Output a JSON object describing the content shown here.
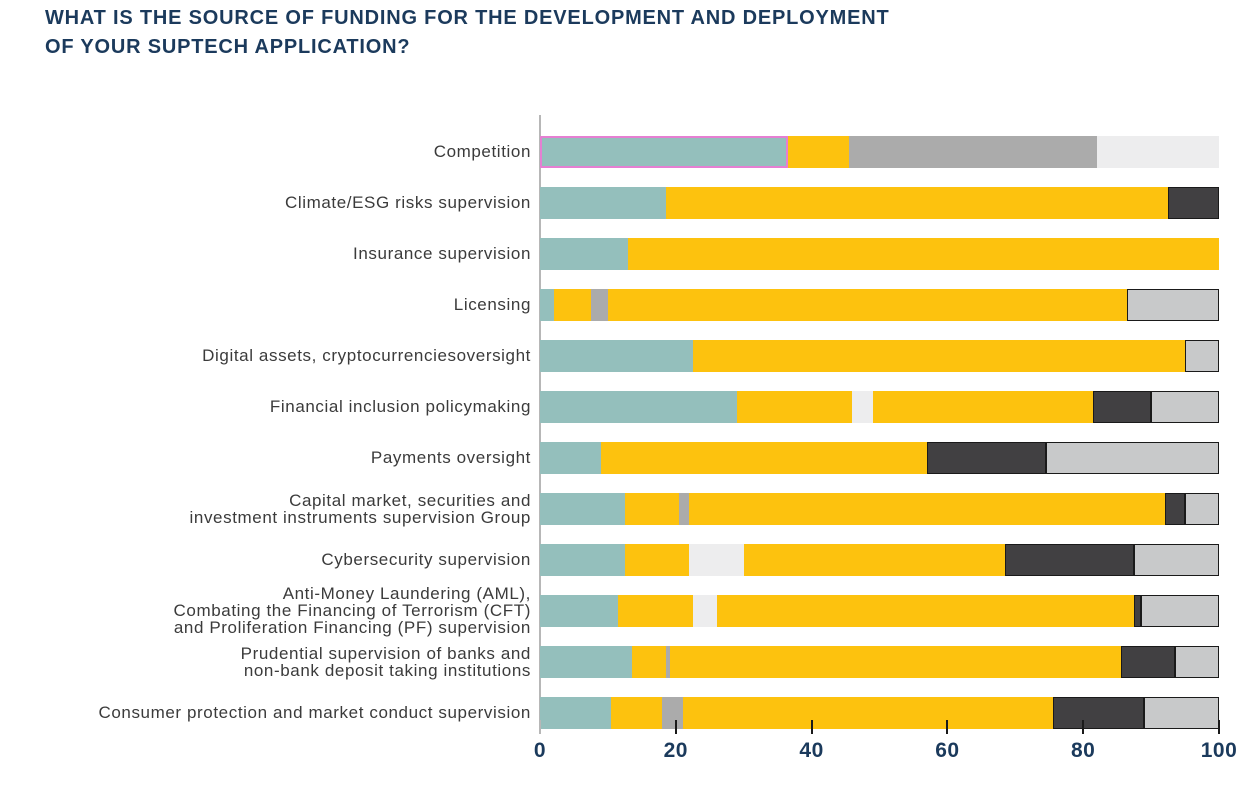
{
  "title": "WHAT IS THE SOURCE OF FUNDING FOR THE DEVELOPMENT AND DEPLOYMENT\nOF YOUR SUPTECH APPLICATION?",
  "colors": {
    "teal": "#94bfbc",
    "yellow": "#fdc20e",
    "gray": "#ababab",
    "palegray": "#ededee",
    "charcoal": "#414042",
    "silver": "#c8c9ca",
    "highlight_border": "#e57fd2",
    "segment_border": "#1a1a1a",
    "axis_line": "#b7b7b7",
    "title_navy": "#1b3a5c",
    "label_gray": "#3b3b3b"
  },
  "chart_data": {
    "type": "bar",
    "orientation": "horizontal",
    "stacked": true,
    "title": "WHAT IS THE SOURCE OF FUNDING FOR THE DEVELOPMENT AND DEPLOYMENT OF YOUR SUPTECH APPLICATION?",
    "xlabel": "",
    "ylabel": "",
    "xlim": [
      0,
      100
    ],
    "x_ticks": [
      "0",
      "20",
      "40",
      "60",
      "80",
      "100"
    ],
    "grid": false,
    "legend": "none",
    "series_note": "segment colors in stack order per row; values are percent of 100",
    "rows": [
      {
        "label": "Competition",
        "segments": [
          {
            "color": "teal",
            "value": 36.5,
            "highlighted": true
          },
          {
            "color": "yellow",
            "value": 9
          },
          {
            "color": "gray",
            "value": 36.5
          },
          {
            "color": "palegray",
            "value": 18
          }
        ]
      },
      {
        "label": "Climate/ESG risks supervision",
        "segments": [
          {
            "color": "teal",
            "value": 18.5
          },
          {
            "color": "yellow",
            "value": 74
          },
          {
            "color": "charcoal",
            "value": 7.5
          }
        ]
      },
      {
        "label": "Insurance supervision",
        "segments": [
          {
            "color": "teal",
            "value": 13
          },
          {
            "color": "yellow",
            "value": 87
          }
        ]
      },
      {
        "label": "Licensing",
        "segments": [
          {
            "color": "teal",
            "value": 2
          },
          {
            "color": "yellow",
            "value": 5.5
          },
          {
            "color": "gray",
            "value": 2.5
          },
          {
            "color": "yellow",
            "value": 76.5
          },
          {
            "color": "silver",
            "value": 13.5
          }
        ]
      },
      {
        "label": "Digital assets, cryptocurrenciesoversight",
        "segments": [
          {
            "color": "teal",
            "value": 22.5
          },
          {
            "color": "yellow",
            "value": 72.5
          },
          {
            "color": "silver",
            "value": 5
          }
        ]
      },
      {
        "label": "Financial inclusion policymaking",
        "segments": [
          {
            "color": "teal",
            "value": 29
          },
          {
            "color": "yellow",
            "value": 17
          },
          {
            "color": "palegray",
            "value": 3
          },
          {
            "color": "yellow",
            "value": 32.5
          },
          {
            "color": "charcoal",
            "value": 8.5
          },
          {
            "color": "silver",
            "value": 10
          }
        ]
      },
      {
        "label": "Payments oversight",
        "segments": [
          {
            "color": "teal",
            "value": 9
          },
          {
            "color": "yellow",
            "value": 48
          },
          {
            "color": "charcoal",
            "value": 17.5
          },
          {
            "color": "silver",
            "value": 25.5
          }
        ]
      },
      {
        "label": "Capital market, securities and\ninvestment instruments supervision Group",
        "segments": [
          {
            "color": "teal",
            "value": 12.5
          },
          {
            "color": "yellow",
            "value": 8
          },
          {
            "color": "gray",
            "value": 1.5
          },
          {
            "color": "yellow",
            "value": 70
          },
          {
            "color": "charcoal",
            "value": 3
          },
          {
            "color": "silver",
            "value": 5
          }
        ]
      },
      {
        "label": "Cybersecurity supervision",
        "segments": [
          {
            "color": "teal",
            "value": 12.5
          },
          {
            "color": "yellow",
            "value": 9.5
          },
          {
            "color": "palegray",
            "value": 8
          },
          {
            "color": "yellow",
            "value": 38.5
          },
          {
            "color": "charcoal",
            "value": 19
          },
          {
            "color": "silver",
            "value": 12.5
          }
        ]
      },
      {
        "label": "Anti-Money Laundering (AML),\nCombating the Financing of Terrorism (CFT)\nand Proliferation Financing (PF) supervision",
        "segments": [
          {
            "color": "teal",
            "value": 11.5
          },
          {
            "color": "yellow",
            "value": 11
          },
          {
            "color": "palegray",
            "value": 3.5
          },
          {
            "color": "yellow",
            "value": 61.5
          },
          {
            "color": "charcoal",
            "value": 1
          },
          {
            "color": "silver",
            "value": 11.5
          }
        ]
      },
      {
        "label": "Prudential supervision of banks and\nnon-bank deposit taking institutions",
        "segments": [
          {
            "color": "teal",
            "value": 13.5
          },
          {
            "color": "yellow",
            "value": 5
          },
          {
            "color": "gray",
            "value": 0.7
          },
          {
            "color": "yellow",
            "value": 66.3
          },
          {
            "color": "charcoal",
            "value": 8
          },
          {
            "color": "silver",
            "value": 6.5
          }
        ]
      },
      {
        "label": "Consumer protection and market conduct supervision",
        "segments": [
          {
            "color": "teal",
            "value": 10.5
          },
          {
            "color": "yellow",
            "value": 7.5
          },
          {
            "color": "gray",
            "value": 3
          },
          {
            "color": "yellow",
            "value": 54.5
          },
          {
            "color": "charcoal",
            "value": 13.5
          },
          {
            "color": "silver",
            "value": 11
          }
        ]
      }
    ]
  }
}
